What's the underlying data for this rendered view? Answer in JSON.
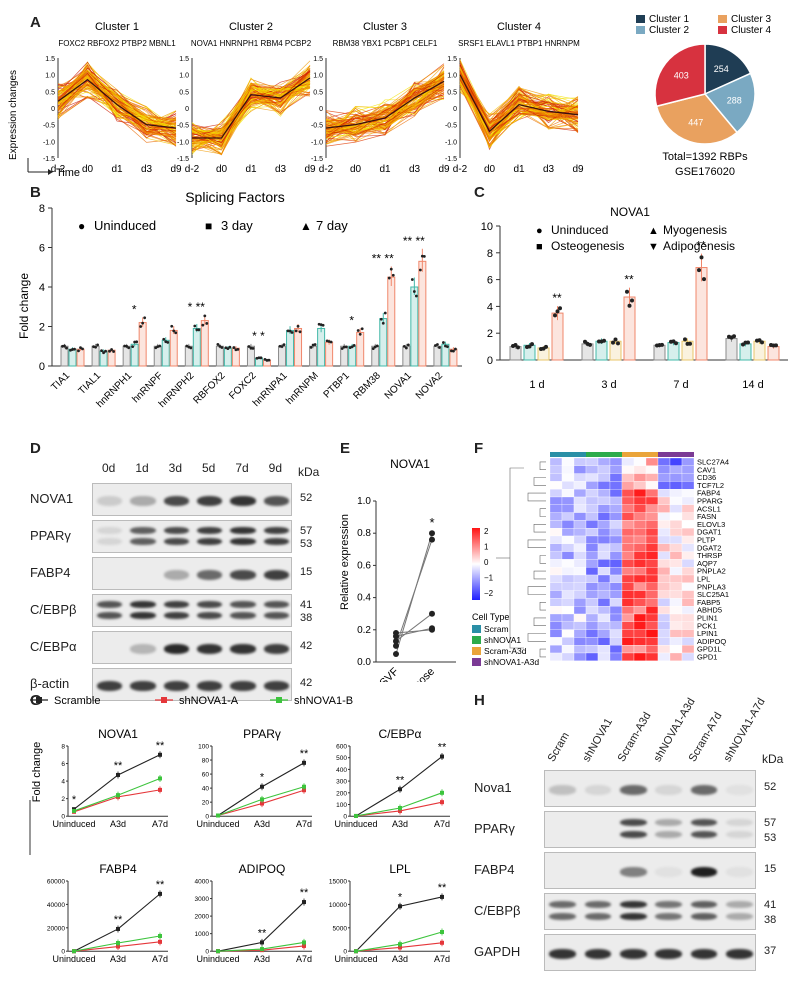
{
  "panels": {
    "A": "A",
    "B": "B",
    "C": "C",
    "D": "D",
    "E": "E",
    "F": "F",
    "G": "G",
    "H": "H"
  },
  "panelA": {
    "ylabel": "Expression changes",
    "xlabel": "Time",
    "yticks": [
      "1.5",
      "1.0",
      "0.5",
      "0",
      "-0.5",
      "-1.0",
      "-1.5"
    ],
    "xticks": [
      "d-2",
      "d0",
      "d1",
      "d3",
      "d9"
    ],
    "clusters": [
      {
        "title": "Cluster 1",
        "genes": "FOXC2 RBFOX2 PTBP2 MBNL1",
        "profile": [
          0.2,
          0.85,
          0.1,
          -0.5,
          -0.6
        ]
      },
      {
        "title": "Cluster 2",
        "genes": "NOVA1 HNRNPH1 RBM4 PCBP2",
        "profile": [
          -0.9,
          -0.9,
          0.4,
          0.3,
          0.9
        ]
      },
      {
        "title": "Cluster 3",
        "genes": "RBM38 YBX1 PCBP1 CELF1",
        "profile": [
          -0.6,
          -0.5,
          -0.3,
          0.3,
          0.8
        ]
      },
      {
        "title": "Cluster 4",
        "genes": "SRSF1 ELAVL1 PTBP1 HNRNPM",
        "profile": [
          1.0,
          -0.7,
          0.1,
          -0.1,
          -0.2
        ]
      }
    ],
    "pie": {
      "legend": [
        "Cluster 1",
        "Cluster 2",
        "Cluster 3",
        "Cluster 4"
      ],
      "values": [
        254,
        288,
        447,
        403
      ],
      "colors": [
        "#1f3d54",
        "#7aa9c2",
        "#e9a15f",
        "#d7323f"
      ],
      "total": "Total=1392 RBPs",
      "accession": "GSE176020"
    }
  },
  "chart_data": [
    {
      "type": "bar",
      "title": "Splicing Factors",
      "ylabel": "Fold change",
      "ylim": [
        0,
        8
      ],
      "categories": [
        "TIA1",
        "TIAL1",
        "hnRNPH1",
        "hnRNPF",
        "hnRNPH2",
        "RBFOX2",
        "FOXC2",
        "hnRNPA1",
        "hnRNPM",
        "PTBP1",
        "RBM38",
        "NOVA1",
        "NOVA2"
      ],
      "series": [
        {
          "name": "Uninduced",
          "values": [
            1,
            1,
            1,
            1,
            1,
            1,
            1,
            1,
            1,
            1,
            1,
            1,
            1
          ]
        },
        {
          "name": "3 day",
          "values": [
            0.85,
            0.75,
            1.1,
            1.3,
            1.9,
            0.9,
            0.4,
            1.8,
            1.9,
            1.0,
            2.4,
            4.0,
            1.1
          ]
        },
        {
          "name": "7 day",
          "values": [
            0.85,
            0.8,
            2.2,
            1.8,
            2.3,
            0.9,
            0.3,
            1.9,
            1.2,
            1.7,
            4.5,
            5.3,
            0.85
          ]
        }
      ],
      "annotations": [
        "",
        "",
        "*",
        "",
        "* **",
        "",
        "* *",
        "",
        "",
        "*",
        "** **",
        "** **",
        ""
      ]
    },
    {
      "type": "bar",
      "title": "NOVA1",
      "ylim": [
        0,
        10
      ],
      "categories": [
        "1 d",
        "3 d",
        "7 d",
        "14 d"
      ],
      "series": [
        {
          "name": "Uninduced",
          "values": [
            1.0,
            1.2,
            1.1,
            1.6
          ]
        },
        {
          "name": "Osteogenesis",
          "values": [
            1.1,
            1.4,
            1.3,
            1.2
          ]
        },
        {
          "name": "Myogenesis",
          "values": [
            0.9,
            1.4,
            1.4,
            1.4
          ]
        },
        {
          "name": "Adipogenesis",
          "values": [
            3.5,
            4.7,
            6.9,
            1.0
          ]
        }
      ],
      "annotations": [
        "**",
        "**",
        "**",
        ""
      ]
    },
    {
      "type": "scatter",
      "title": "NOVA1",
      "ylabel": "Relative expression",
      "ylim": [
        0,
        1.0
      ],
      "categories": [
        "SVF",
        "Adipose"
      ],
      "pairs": [
        [
          0.05,
          0.8
        ],
        [
          0.1,
          0.76
        ],
        [
          0.13,
          0.3
        ],
        [
          0.16,
          0.21
        ],
        [
          0.18,
          0.2
        ]
      ],
      "annotation": "*"
    },
    {
      "type": "line",
      "title": "NOVA1",
      "ylabel": "Fold change",
      "ylim": [
        0,
        8
      ],
      "x": [
        "Uninduced",
        "A3d",
        "A7d"
      ],
      "series": [
        {
          "name": "Scramble",
          "values": [
            0.8,
            4.7,
            7.0
          ]
        },
        {
          "name": "shNOVA1-A",
          "values": [
            0.5,
            2.2,
            3.0
          ]
        },
        {
          "name": "shNOVA1-B",
          "values": [
            0.6,
            2.4,
            4.3
          ]
        }
      ]
    },
    {
      "type": "line",
      "title": "PPARγ",
      "ylim": [
        0,
        100
      ],
      "x": [
        "Uninduced",
        "A3d",
        "A7d"
      ],
      "series": [
        {
          "name": "Scramble",
          "values": [
            1,
            42,
            76
          ]
        },
        {
          "name": "shNOVA1-A",
          "values": [
            1,
            18,
            37
          ]
        },
        {
          "name": "shNOVA1-B",
          "values": [
            1,
            24,
            42
          ]
        }
      ]
    },
    {
      "type": "line",
      "title": "C/EBPα",
      "ylim": [
        0,
        600
      ],
      "x": [
        "Uninduced",
        "A3d",
        "A7d"
      ],
      "series": [
        {
          "name": "Scramble",
          "values": [
            2,
            230,
            510
          ]
        },
        {
          "name": "shNOVA1-A",
          "values": [
            2,
            45,
            120
          ]
        },
        {
          "name": "shNOVA1-B",
          "values": [
            2,
            70,
            200
          ]
        }
      ]
    },
    {
      "type": "line",
      "title": "FABP4",
      "ylim": [
        0,
        60000
      ],
      "x": [
        "Uninduced",
        "A3d",
        "A7d"
      ],
      "series": [
        {
          "name": "Scramble",
          "values": [
            0,
            19000,
            49000
          ]
        },
        {
          "name": "shNOVA1-A",
          "values": [
            0,
            4000,
            8000
          ]
        },
        {
          "name": "shNOVA1-B",
          "values": [
            0,
            7000,
            13000
          ]
        }
      ]
    },
    {
      "type": "line",
      "title": "ADIPOQ",
      "ylim": [
        0,
        4000
      ],
      "x": [
        "Uninduced",
        "A3d",
        "A7d"
      ],
      "series": [
        {
          "name": "Scramble",
          "values": [
            0,
            500,
            2800
          ]
        },
        {
          "name": "shNOVA1-A",
          "values": [
            0,
            60,
            300
          ]
        },
        {
          "name": "shNOVA1-B",
          "values": [
            0,
            120,
            500
          ]
        }
      ]
    },
    {
      "type": "line",
      "title": "LPL",
      "ylim": [
        0,
        15000
      ],
      "x": [
        "Uninduced",
        "A3d",
        "A7d"
      ],
      "series": [
        {
          "name": "Scramble",
          "values": [
            0,
            9600,
            11600
          ]
        },
        {
          "name": "shNOVA1-A",
          "values": [
            0,
            800,
            1800
          ]
        },
        {
          "name": "shNOVA1-B",
          "values": [
            0,
            1500,
            4100
          ]
        }
      ]
    }
  ],
  "panelB": {
    "title": "Splicing Factors",
    "ylabel": "Fold change",
    "yticks": [
      "0",
      "2",
      "4",
      "6",
      "8"
    ],
    "legend": [
      {
        "sym": "●",
        "label": "Uninduced"
      },
      {
        "sym": "■",
        "label": "3 day"
      },
      {
        "sym": "▲",
        "label": "7 day"
      }
    ],
    "colors": [
      "#8a8a8a",
      "#43b8a8",
      "#f0876b"
    ]
  },
  "panelC": {
    "title": "NOVA1",
    "yticks": [
      "0",
      "2",
      "4",
      "6",
      "8",
      "10"
    ],
    "legend": [
      {
        "sym": "●",
        "label": "Uninduced"
      },
      {
        "sym": "■",
        "label": "Osteogenesis"
      },
      {
        "sym": "▲",
        "label": "Myogenesis"
      },
      {
        "sym": "▼",
        "label": "Adipogenesis"
      }
    ],
    "colors": [
      "#8a8a8a",
      "#43b8a8",
      "#e8c66a",
      "#f0876b"
    ]
  },
  "panelD": {
    "lanes": [
      "0d",
      "1d",
      "3d",
      "5d",
      "7d",
      "9d"
    ],
    "unit": "kDa",
    "rows": [
      {
        "name": "NOVA1",
        "kda": [
          "52"
        ]
      },
      {
        "name": "PPARγ",
        "kda": [
          "57",
          "53"
        ]
      },
      {
        "name": "FABP4",
        "kda": [
          "15"
        ]
      },
      {
        "name": "C/EBPβ",
        "kda": [
          "41",
          "38"
        ]
      },
      {
        "name": "C/EBPα",
        "kda": [
          "42"
        ]
      },
      {
        "name": "β-actin",
        "kda": [
          "42"
        ]
      }
    ]
  },
  "panelE": {
    "title": "NOVA1",
    "ylabel": "Relative expression",
    "yticks": [
      "0.0",
      "0.2",
      "0.4",
      "0.6",
      "0.8",
      "1.0"
    ],
    "x": [
      "SVF",
      "Adipose"
    ]
  },
  "panelF": {
    "genes": [
      "SLC27A4",
      "CAV1",
      "CD36",
      "TCF7L2",
      "FABP4",
      "PPARG",
      "ACSL1",
      "FASN",
      "ELOVL3",
      "DGAT1",
      "PLTP",
      "DGAT2",
      "THRSP",
      "AQP7",
      "PNPLA2",
      "LPL",
      "PNPLA3",
      "SLC25A1",
      "FABP5",
      "ABHD5",
      "PLIN1",
      "PCK1",
      "LPIN1",
      "ADIPOQ",
      "GPD1L",
      "GPD1"
    ],
    "scale": [
      "2",
      "1",
      "0",
      "−1",
      "−2"
    ],
    "legend_title": "Cell Type",
    "cell_types": [
      {
        "name": "Scram",
        "color": "#2a8fa6"
      },
      {
        "name": "shNOVA1",
        "color": "#2cab4b"
      },
      {
        "name": "Scram-A3d",
        "color": "#eaa43a"
      },
      {
        "name": "shNOVA1-A3d",
        "color": "#7b3a95"
      }
    ]
  },
  "panelG": {
    "legend": [
      {
        "name": "Scramble",
        "color": "#222222"
      },
      {
        "name": "shNOVA1-A",
        "color": "#e5363a"
      },
      {
        "name": "shNOVA1-B",
        "color": "#3dc43d"
      }
    ],
    "ylabel": "Fold change",
    "yticks": [
      [
        "0",
        "2",
        "4",
        "6",
        "8"
      ],
      [
        "0",
        "20",
        "40",
        "60",
        "80",
        "100"
      ],
      [
        "0",
        "100",
        "200",
        "300",
        "400",
        "500",
        "600"
      ],
      [
        "0",
        "20000",
        "40000",
        "60000"
      ],
      [
        "0",
        "1000",
        "2000",
        "3000",
        "4000"
      ],
      [
        "0",
        "5000",
        "10000",
        "15000"
      ]
    ],
    "sig": [
      [
        "*",
        "**",
        "**"
      ],
      [
        "",
        "*",
        "**"
      ],
      [
        "",
        "**",
        "**"
      ],
      [
        "",
        "**",
        "**"
      ],
      [
        "",
        "**",
        "**"
      ],
      [
        "",
        "*",
        "**"
      ]
    ]
  },
  "panelH": {
    "lanes": [
      "Scram",
      "shNOVA1",
      "Scram-A3d",
      "shNOVA1-A3d",
      "Scram-A7d",
      "shNOVA1-A7d"
    ],
    "unit": "kDa",
    "rows": [
      {
        "name": "Nova1",
        "kda": [
          "52"
        ]
      },
      {
        "name": "PPARγ",
        "kda": [
          "57",
          "53"
        ]
      },
      {
        "name": "FABP4",
        "kda": [
          "15"
        ]
      },
      {
        "name": "C/EBPβ",
        "kda": [
          "41",
          "38"
        ]
      },
      {
        "name": "GAPDH",
        "kda": [
          "37"
        ]
      }
    ]
  }
}
